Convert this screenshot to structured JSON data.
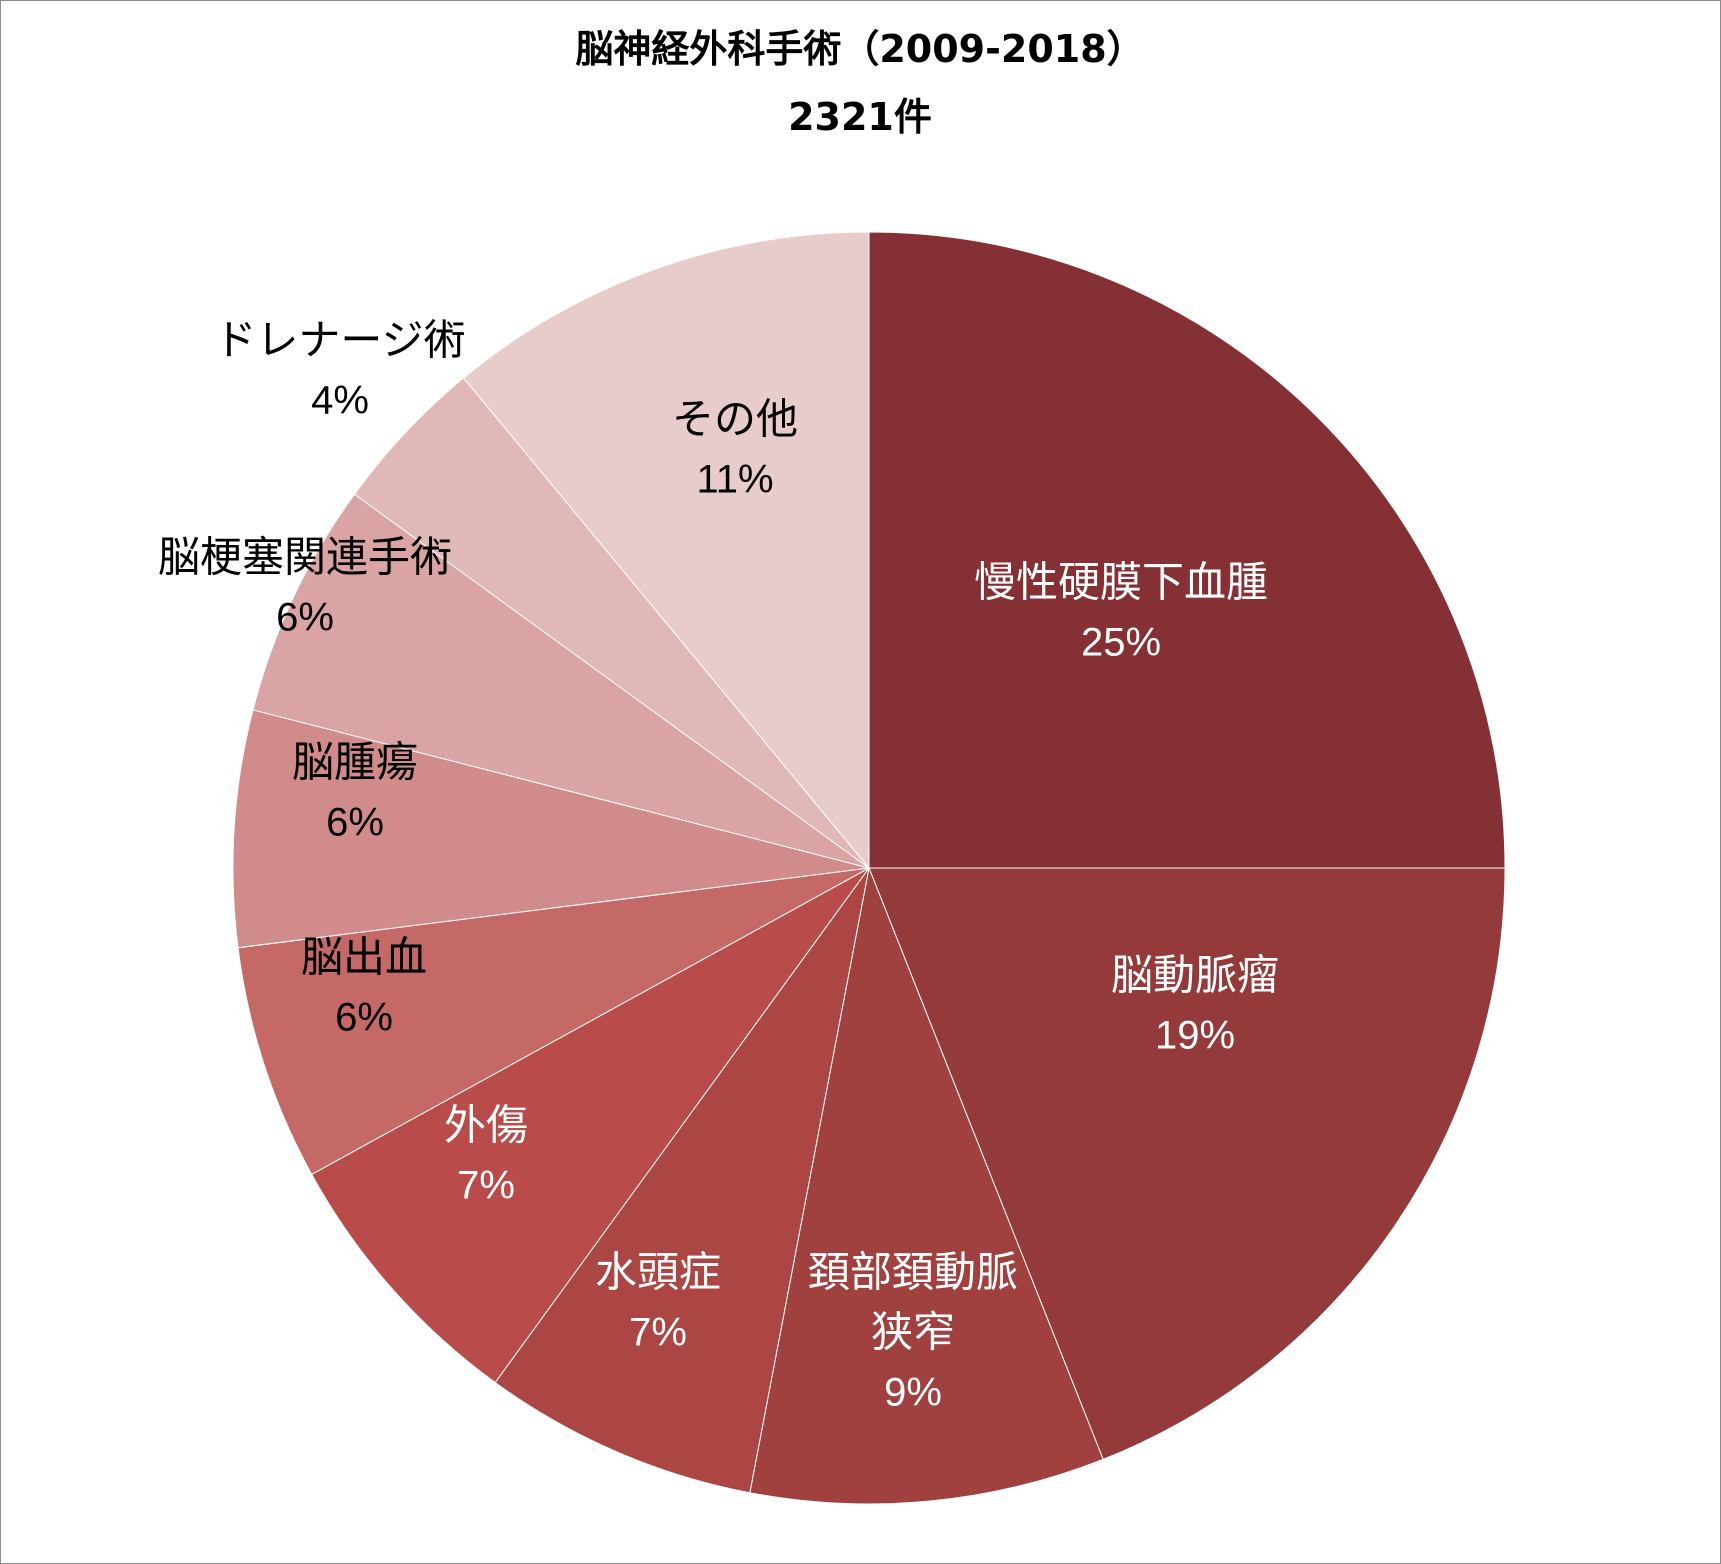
{
  "chart_data": {
    "type": "pie",
    "title": "脳神経外科手術（2009-2018）",
    "subtitle": "2321件",
    "start_angle_deg": 0,
    "direction": "clockwise",
    "slices": [
      {
        "name": "慢性硬膜下血腫",
        "label_lines": [
          "慢性硬膜下血腫"
        ],
        "value": 25,
        "pct_label": "25%",
        "color": "#843034",
        "text_color": "#ffffff",
        "label_position": "inside"
      },
      {
        "name": "脳動脈瘤",
        "label_lines": [
          "脳動脈瘤"
        ],
        "value": 19,
        "pct_label": "19%",
        "color": "#953A3A",
        "text_color": "#ffffff",
        "label_position": "inside"
      },
      {
        "name": "頚部頚動脈狭窄",
        "label_lines": [
          "頚部頚動脈",
          "狭窄"
        ],
        "value": 9,
        "pct_label": "9%",
        "color": "#A04140",
        "text_color": "#ffffff",
        "label_position": "inside"
      },
      {
        "name": "水頭症",
        "label_lines": [
          "水頭症"
        ],
        "value": 7,
        "pct_label": "7%",
        "color": "#AB4644",
        "text_color": "#ffffff",
        "label_position": "inside"
      },
      {
        "name": "外傷",
        "label_lines": [
          "外傷"
        ],
        "value": 7,
        "pct_label": "7%",
        "color": "#B94C4B",
        "text_color": "#ffffff",
        "label_position": "inside"
      },
      {
        "name": "脳出血",
        "label_lines": [
          "脳出血"
        ],
        "value": 6,
        "pct_label": "6%",
        "color": "#C56967",
        "text_color": "#000000",
        "label_position": "inside"
      },
      {
        "name": "脳腫瘍",
        "label_lines": [
          "脳腫瘍"
        ],
        "value": 6,
        "pct_label": "6%",
        "color": "#D08B8A",
        "text_color": "#000000",
        "label_position": "inside"
      },
      {
        "name": "脳梗塞関連手術",
        "label_lines": [
          "脳梗塞関連手術"
        ],
        "value": 6,
        "pct_label": "6%",
        "color": "#D9A4A3",
        "text_color": "#000000",
        "label_position": "outside"
      },
      {
        "name": "ドレナージ術",
        "label_lines": [
          "ドレナージ術"
        ],
        "value": 4,
        "pct_label": "4%",
        "color": "#DFB8B7",
        "text_color": "#000000",
        "label_position": "outside"
      },
      {
        "name": "その他",
        "label_lines": [
          "その他"
        ],
        "value": 11,
        "pct_label": "11%",
        "color": "#E8CCCC",
        "text_color": "#000000",
        "label_position": "inside"
      }
    ]
  }
}
